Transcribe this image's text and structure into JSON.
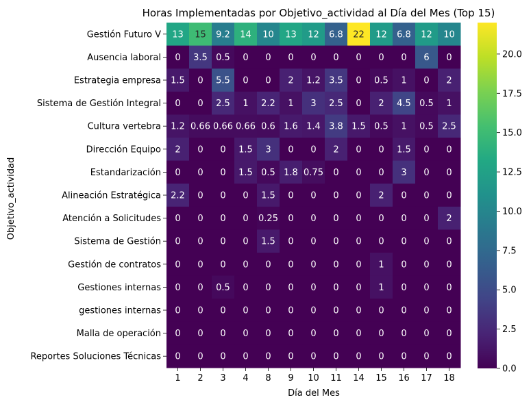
{
  "chart_data": {
    "type": "heatmap",
    "title": "Horas Implementadas por Objetivo_actividad al Día del Mes (Top 15)",
    "xlabel": "Día del Mes",
    "ylabel": "Objetivo_actividad",
    "colormap": "viridis",
    "x": [
      "1",
      "2",
      "3",
      "4",
      "8",
      "9",
      "10",
      "11",
      "14",
      "15",
      "16",
      "17",
      "18"
    ],
    "y": [
      "Gestión Futuro V",
      "Ausencia laboral",
      "Estrategia empresa",
      "Sistema de Gestión Integral",
      "Cultura vertebra",
      "Dirección Equipo",
      "Estandarización",
      "Alineación Estratégica",
      "Atención a Solicitudes",
      "Sistema de Gestión",
      "Gestión de contratos",
      "Gestiones internas",
      "gestiones internas",
      "Malla de operación",
      "Reportes Soluciones Técnicas"
    ],
    "values": [
      [
        13,
        15,
        9.2,
        14,
        10,
        13,
        12,
        6.8,
        22,
        12,
        6.8,
        12,
        10
      ],
      [
        0,
        3.5,
        0.5,
        0,
        0,
        0,
        0,
        0,
        0,
        0,
        0,
        6,
        0
      ],
      [
        1.5,
        0,
        5.5,
        0,
        0,
        2,
        1.2,
        3.5,
        0,
        0.5,
        1,
        0,
        2
      ],
      [
        0,
        0,
        2.5,
        1,
        2.2,
        1,
        3,
        2.5,
        0,
        2,
        4.5,
        0.5,
        1
      ],
      [
        1.2,
        0.66,
        0.66,
        0.66,
        0.6,
        1.6,
        1.4,
        3.8,
        1.5,
        0.5,
        1,
        0.5,
        2.5
      ],
      [
        2,
        0,
        0,
        1.5,
        3,
        0,
        0,
        2,
        0,
        0,
        1.5,
        0,
        0
      ],
      [
        0,
        0,
        0,
        1.5,
        0.5,
        1.8,
        0.75,
        0,
        0,
        0,
        3,
        0,
        0
      ],
      [
        2.2,
        0,
        0,
        0,
        1.5,
        0,
        0,
        0,
        0,
        2,
        0,
        0,
        0
      ],
      [
        0,
        0,
        0,
        0,
        0.25,
        0,
        0,
        0,
        0,
        0,
        0,
        0,
        2
      ],
      [
        0,
        0,
        0,
        0,
        1.5,
        0,
        0,
        0,
        0,
        0,
        0,
        0,
        0
      ],
      [
        0,
        0,
        0,
        0,
        0,
        0,
        0,
        0,
        0,
        1,
        0,
        0,
        0
      ],
      [
        0,
        0,
        0.5,
        0,
        0,
        0,
        0,
        0,
        0,
        1,
        0,
        0,
        0
      ],
      [
        0,
        0,
        0,
        0,
        0,
        0,
        0,
        0,
        0,
        0,
        0,
        0,
        0
      ],
      [
        0,
        0,
        0,
        0,
        0,
        0,
        0,
        0,
        0,
        0,
        0,
        0,
        0
      ],
      [
        0,
        0,
        0,
        0,
        0,
        0,
        0,
        0,
        0,
        0,
        0,
        0,
        0
      ]
    ],
    "vmin": 0,
    "vmax": 22,
    "colorbar_ticks": [
      "0.0",
      "2.5",
      "5.0",
      "7.5",
      "10.0",
      "12.5",
      "15.0",
      "17.5",
      "20.0"
    ]
  }
}
